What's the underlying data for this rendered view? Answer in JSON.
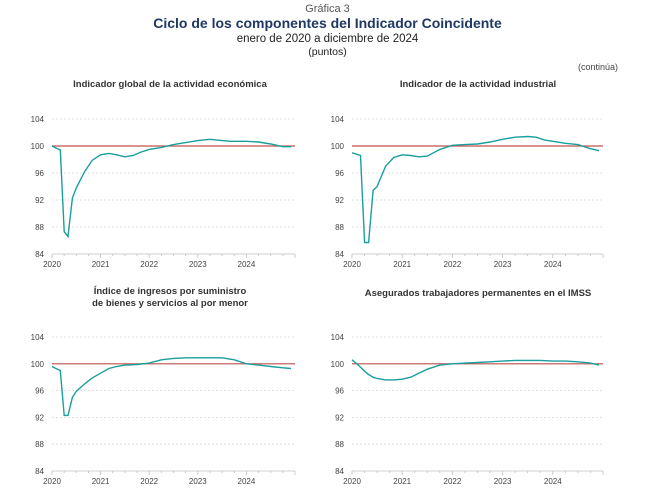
{
  "header": {
    "label": "Gráfica 3",
    "title": "Ciclo de los componentes del Indicador Coincidente",
    "subtitle": "enero de 2020 a diciembre de 2024",
    "units": "(puntos)",
    "continued": "(continúa)"
  },
  "colors": {
    "series": "#1b9e9e",
    "reference": "#c0504d",
    "title": "#1f3864"
  },
  "chart_data": [
    {
      "type": "line",
      "title": "Indicador global de la actividad económica",
      "ylim": [
        84,
        104
      ],
      "yticks": [
        84,
        88,
        92,
        96,
        100,
        104
      ],
      "xticks": [
        "2020",
        "2021",
        "2022",
        "2023",
        "2024"
      ],
      "reference": 100,
      "x": [
        2020.0,
        2020.08,
        2020.17,
        2020.25,
        2020.33,
        2020.42,
        2020.5,
        2020.67,
        2020.83,
        2021.0,
        2021.17,
        2021.33,
        2021.5,
        2021.67,
        2021.83,
        2022.0,
        2022.25,
        2022.5,
        2022.75,
        2023.0,
        2023.25,
        2023.5,
        2023.67,
        2023.83,
        2024.0,
        2024.25,
        2024.5,
        2024.75,
        2024.92
      ],
      "values": [
        100.0,
        99.7,
        99.4,
        87.3,
        86.6,
        92.3,
        93.8,
        96.2,
        97.9,
        98.7,
        98.9,
        98.7,
        98.4,
        98.6,
        99.1,
        99.5,
        99.8,
        100.2,
        100.5,
        100.8,
        101.0,
        100.8,
        100.7,
        100.7,
        100.7,
        100.6,
        100.3,
        99.9,
        99.9
      ]
    },
    {
      "type": "line",
      "title": "Indicador de la actividad industrial",
      "ylim": [
        84,
        104
      ],
      "yticks": [
        84,
        88,
        92,
        96,
        100,
        104
      ],
      "xticks": [
        "2020",
        "2021",
        "2022",
        "2023",
        "2024"
      ],
      "reference": 100,
      "x": [
        2020.0,
        2020.08,
        2020.17,
        2020.25,
        2020.33,
        2020.42,
        2020.5,
        2020.67,
        2020.83,
        2021.0,
        2021.17,
        2021.33,
        2021.5,
        2021.75,
        2022.0,
        2022.25,
        2022.5,
        2022.75,
        2023.0,
        2023.25,
        2023.5,
        2023.67,
        2023.83,
        2024.0,
        2024.25,
        2024.5,
        2024.75,
        2024.92
      ],
      "values": [
        99.0,
        98.8,
        98.6,
        85.7,
        85.7,
        93.4,
        94.0,
        97.0,
        98.3,
        98.7,
        98.6,
        98.4,
        98.5,
        99.5,
        100.1,
        100.2,
        100.3,
        100.6,
        101.0,
        101.3,
        101.4,
        101.3,
        100.9,
        100.7,
        100.4,
        100.2,
        99.6,
        99.3
      ]
    },
    {
      "type": "line",
      "title": "Índice de ingresos por suministro de bienes y servicios al por menor",
      "ylim": [
        84,
        104
      ],
      "yticks": [
        84,
        88,
        92,
        96,
        100,
        104
      ],
      "xticks": [
        "2020",
        "2021",
        "2022",
        "2023",
        "2024"
      ],
      "reference": 100,
      "x": [
        2020.0,
        2020.08,
        2020.17,
        2020.25,
        2020.33,
        2020.42,
        2020.5,
        2020.67,
        2020.83,
        2021.0,
        2021.17,
        2021.33,
        2021.5,
        2021.75,
        2022.0,
        2022.25,
        2022.5,
        2022.75,
        2023.0,
        2023.25,
        2023.5,
        2023.75,
        2024.0,
        2024.25,
        2024.5,
        2024.75,
        2024.92
      ],
      "values": [
        99.6,
        99.3,
        99.0,
        92.3,
        92.3,
        95.0,
        95.9,
        97.0,
        97.9,
        98.6,
        99.3,
        99.6,
        99.8,
        99.9,
        100.1,
        100.6,
        100.8,
        100.9,
        100.9,
        100.9,
        100.9,
        100.6,
        100.0,
        99.8,
        99.6,
        99.4,
        99.3
      ]
    },
    {
      "type": "line",
      "title": "Asegurados trabajadores permanentes en el IMSS",
      "ylim": [
        84,
        104
      ],
      "yticks": [
        84,
        88,
        92,
        96,
        100,
        104
      ],
      "xticks": [
        "2020",
        "2021",
        "2022",
        "2023",
        "2024"
      ],
      "reference": 100,
      "x": [
        2020.0,
        2020.08,
        2020.17,
        2020.25,
        2020.33,
        2020.42,
        2020.5,
        2020.67,
        2020.83,
        2021.0,
        2021.17,
        2021.33,
        2021.5,
        2021.75,
        2022.0,
        2022.25,
        2022.5,
        2022.75,
        2023.0,
        2023.25,
        2023.5,
        2023.75,
        2024.0,
        2024.25,
        2024.5,
        2024.75,
        2024.92
      ],
      "values": [
        100.6,
        100.1,
        99.5,
        98.9,
        98.4,
        98.0,
        97.8,
        97.6,
        97.6,
        97.7,
        98.0,
        98.6,
        99.2,
        99.8,
        100.0,
        100.1,
        100.2,
        100.3,
        100.4,
        100.5,
        100.5,
        100.5,
        100.4,
        100.4,
        100.3,
        100.1,
        99.8
      ]
    }
  ]
}
